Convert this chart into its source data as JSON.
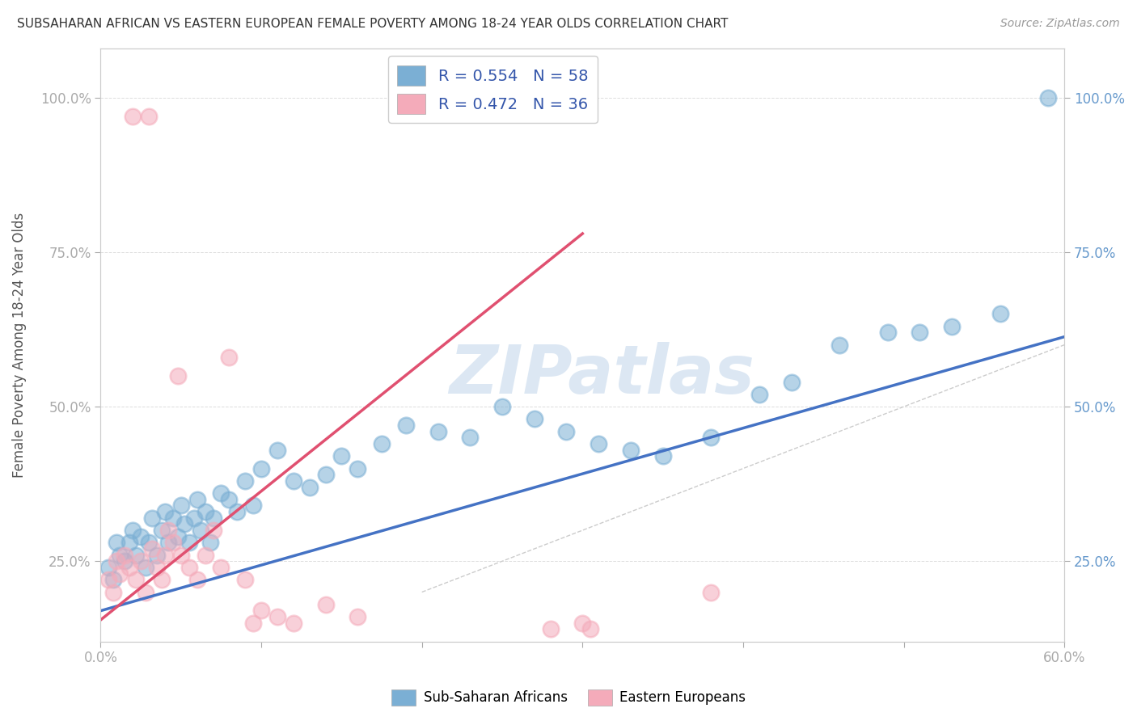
{
  "title": "SUBSAHARAN AFRICAN VS EASTERN EUROPEAN FEMALE POVERTY AMONG 18-24 YEAR OLDS CORRELATION CHART",
  "source": "Source: ZipAtlas.com",
  "ylabel": "Female Poverty Among 18-24 Year Olds",
  "xlim": [
    0.0,
    0.6
  ],
  "ylim": [
    0.12,
    1.08
  ],
  "xticks": [
    0.0,
    0.1,
    0.2,
    0.3,
    0.4,
    0.5,
    0.6
  ],
  "xtick_labels": [
    "0.0%",
    "",
    "",
    "",
    "",
    "",
    "60.0%"
  ],
  "yticks": [
    0.25,
    0.5,
    0.75,
    1.0
  ],
  "ytick_labels": [
    "25.0%",
    "50.0%",
    "75.0%",
    "100.0%"
  ],
  "blue_R": "0.554",
  "blue_N": "58",
  "pink_R": "0.472",
  "pink_N": "36",
  "legend_label_blue": "Sub-Saharan Africans",
  "legend_label_pink": "Eastern Europeans",
  "blue_color": "#7BAFD4",
  "pink_color": "#F4ABBA",
  "blue_line_color": "#4472C4",
  "pink_line_color": "#E05070",
  "watermark_color": "#C5D8EC",
  "watermark": "ZIPatlas",
  "blue_scatter_x": [
    0.005,
    0.008,
    0.01,
    0.012,
    0.015,
    0.018,
    0.02,
    0.022,
    0.025,
    0.028,
    0.03,
    0.032,
    0.035,
    0.038,
    0.04,
    0.042,
    0.045,
    0.048,
    0.05,
    0.052,
    0.055,
    0.058,
    0.06,
    0.062,
    0.065,
    0.068,
    0.07,
    0.075,
    0.08,
    0.085,
    0.09,
    0.095,
    0.1,
    0.11,
    0.12,
    0.13,
    0.14,
    0.15,
    0.16,
    0.175,
    0.19,
    0.21,
    0.23,
    0.25,
    0.27,
    0.29,
    0.31,
    0.33,
    0.35,
    0.38,
    0.41,
    0.43,
    0.46,
    0.49,
    0.51,
    0.53,
    0.56,
    0.59
  ],
  "blue_scatter_y": [
    0.24,
    0.22,
    0.28,
    0.26,
    0.25,
    0.28,
    0.3,
    0.26,
    0.29,
    0.24,
    0.28,
    0.32,
    0.26,
    0.3,
    0.33,
    0.28,
    0.32,
    0.29,
    0.34,
    0.31,
    0.28,
    0.32,
    0.35,
    0.3,
    0.33,
    0.28,
    0.32,
    0.36,
    0.35,
    0.33,
    0.38,
    0.34,
    0.4,
    0.43,
    0.38,
    0.37,
    0.39,
    0.42,
    0.4,
    0.44,
    0.47,
    0.46,
    0.45,
    0.5,
    0.48,
    0.46,
    0.44,
    0.43,
    0.42,
    0.45,
    0.52,
    0.54,
    0.6,
    0.62,
    0.62,
    0.63,
    0.65,
    1.0
  ],
  "pink_scatter_x": [
    0.005,
    0.008,
    0.01,
    0.012,
    0.015,
    0.018,
    0.02,
    0.022,
    0.025,
    0.028,
    0.03,
    0.032,
    0.035,
    0.038,
    0.04,
    0.042,
    0.045,
    0.048,
    0.05,
    0.055,
    0.06,
    0.065,
    0.07,
    0.075,
    0.08,
    0.09,
    0.095,
    0.1,
    0.11,
    0.12,
    0.14,
    0.16,
    0.28,
    0.3,
    0.305,
    0.38
  ],
  "pink_scatter_y": [
    0.22,
    0.2,
    0.25,
    0.23,
    0.26,
    0.24,
    0.97,
    0.22,
    0.25,
    0.2,
    0.97,
    0.27,
    0.24,
    0.22,
    0.26,
    0.3,
    0.28,
    0.55,
    0.26,
    0.24,
    0.22,
    0.26,
    0.3,
    0.24,
    0.58,
    0.22,
    0.15,
    0.17,
    0.16,
    0.15,
    0.18,
    0.16,
    0.14,
    0.15,
    0.14,
    0.2
  ],
  "blue_line_x": [
    -0.02,
    0.65
  ],
  "blue_line_y": [
    0.155,
    0.65
  ],
  "pink_line_x": [
    0.0,
    0.3
  ],
  "pink_line_y": [
    0.155,
    0.78
  ],
  "ref_line_x": [
    0.2,
    1.05
  ],
  "ref_line_y": [
    0.2,
    1.05
  ]
}
